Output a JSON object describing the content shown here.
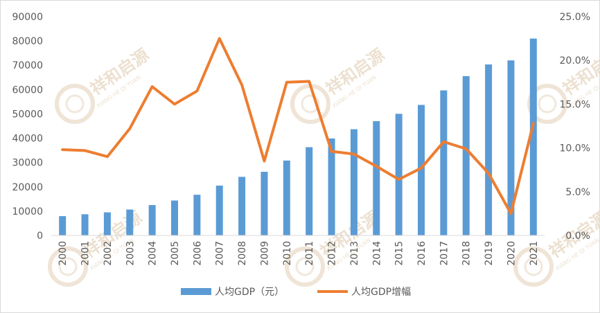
{
  "chart_data": {
    "type": "bar+line",
    "categories": [
      "2000",
      "2001",
      "2002",
      "2003",
      "2004",
      "2005",
      "2006",
      "2007",
      "2008",
      "2009",
      "2010",
      "2011",
      "2012",
      "2013",
      "2014",
      "2015",
      "2016",
      "2017",
      "2018",
      "2019",
      "2020",
      "2021"
    ],
    "series": [
      {
        "name": "人均GDP（元）",
        "type": "bar",
        "axis": "left",
        "values": [
          7942,
          8717,
          9506,
          10666,
          12487,
          14368,
          16738,
          20494,
          24100,
          26180,
          30808,
          36302,
          39874,
          43684,
          47005,
          50028,
          53680,
          59660,
          65534,
          70328,
          72000,
          80976
        ]
      },
      {
        "name": "人均GDP增幅",
        "type": "line",
        "axis": "right",
        "values": [
          0.098,
          0.097,
          0.09,
          0.122,
          0.17,
          0.15,
          0.165,
          0.225,
          0.172,
          0.085,
          0.175,
          0.176,
          0.096,
          0.093,
          0.079,
          0.064,
          0.077,
          0.107,
          0.099,
          0.071,
          0.025,
          0.128
        ]
      }
    ],
    "y_left": {
      "ticks": [
        "0",
        "10000",
        "20000",
        "30000",
        "40000",
        "50000",
        "60000",
        "70000",
        "80000",
        "90000"
      ],
      "min": 0,
      "max": 90000
    },
    "y_right": {
      "ticks": [
        "0.0%",
        "5.0%",
        "10.0%",
        "15.0%",
        "20.0%",
        "25.0%"
      ],
      "min": 0,
      "max": 0.25
    },
    "grid": false,
    "legend_position": "bottom",
    "colors": {
      "bar": "#5b9bd5",
      "line": "#ed7d31",
      "tick_text": "#595959",
      "axis": "#d9d9d9"
    }
  },
  "watermark": {
    "text": "祥和启源",
    "subtext": "XIANG HE QI YUAN",
    "color": "#e8d9c5"
  }
}
